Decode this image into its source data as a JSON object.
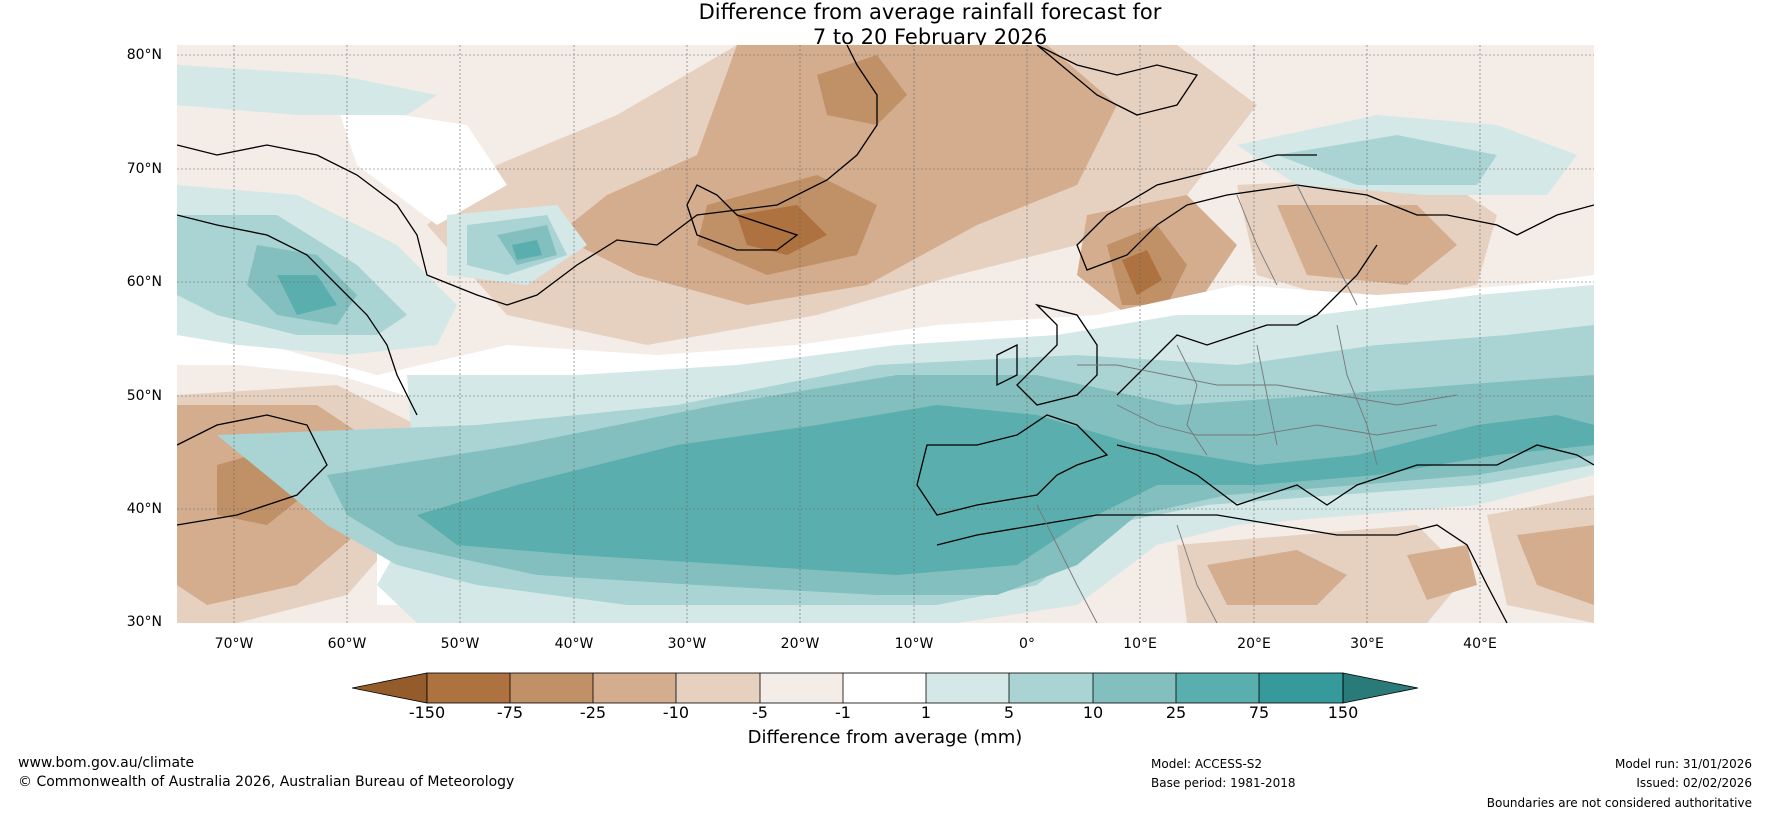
{
  "title": {
    "line1": "Difference from average rainfall forecast for",
    "line2": "7 to 20 February 2026"
  },
  "axes": {
    "lat_labels": [
      "80°N",
      "70°N",
      "60°N",
      "50°N",
      "40°N",
      "30°N"
    ],
    "lon_labels": [
      "70°W",
      "60°W",
      "50°W",
      "40°W",
      "30°W",
      "20°W",
      "10°W",
      "0°",
      "10°E",
      "20°E",
      "30°E",
      "40°E"
    ]
  },
  "colorbar": {
    "ticks": [
      "-150",
      "-75",
      "-25",
      "-10",
      "-5",
      "-1",
      "1",
      "5",
      "10",
      "25",
      "75",
      "150"
    ],
    "label": "Difference from average (mm)",
    "colors": [
      "#935c2a",
      "#ad723f",
      "#c09067",
      "#d3ad8e",
      "#e6d1c1",
      "#f4ece7",
      "#ffffff",
      "#d4e8e7",
      "#a9d4d3",
      "#83bfbf",
      "#5baeae",
      "#369a9a",
      "#2a7a7a"
    ]
  },
  "footer": {
    "website": "www.bom.gov.au/climate",
    "copyright": "© Commonwealth of Australia 2026, Australian Bureau of Meteorology",
    "model": "Model: ACCESS-S2",
    "base_period": "Base period: 1981-2018",
    "model_run": "Model run: 31/01/2026",
    "issued": "Issued: 02/02/2026",
    "disclaimer": "Boundaries are not considered authoritative"
  }
}
